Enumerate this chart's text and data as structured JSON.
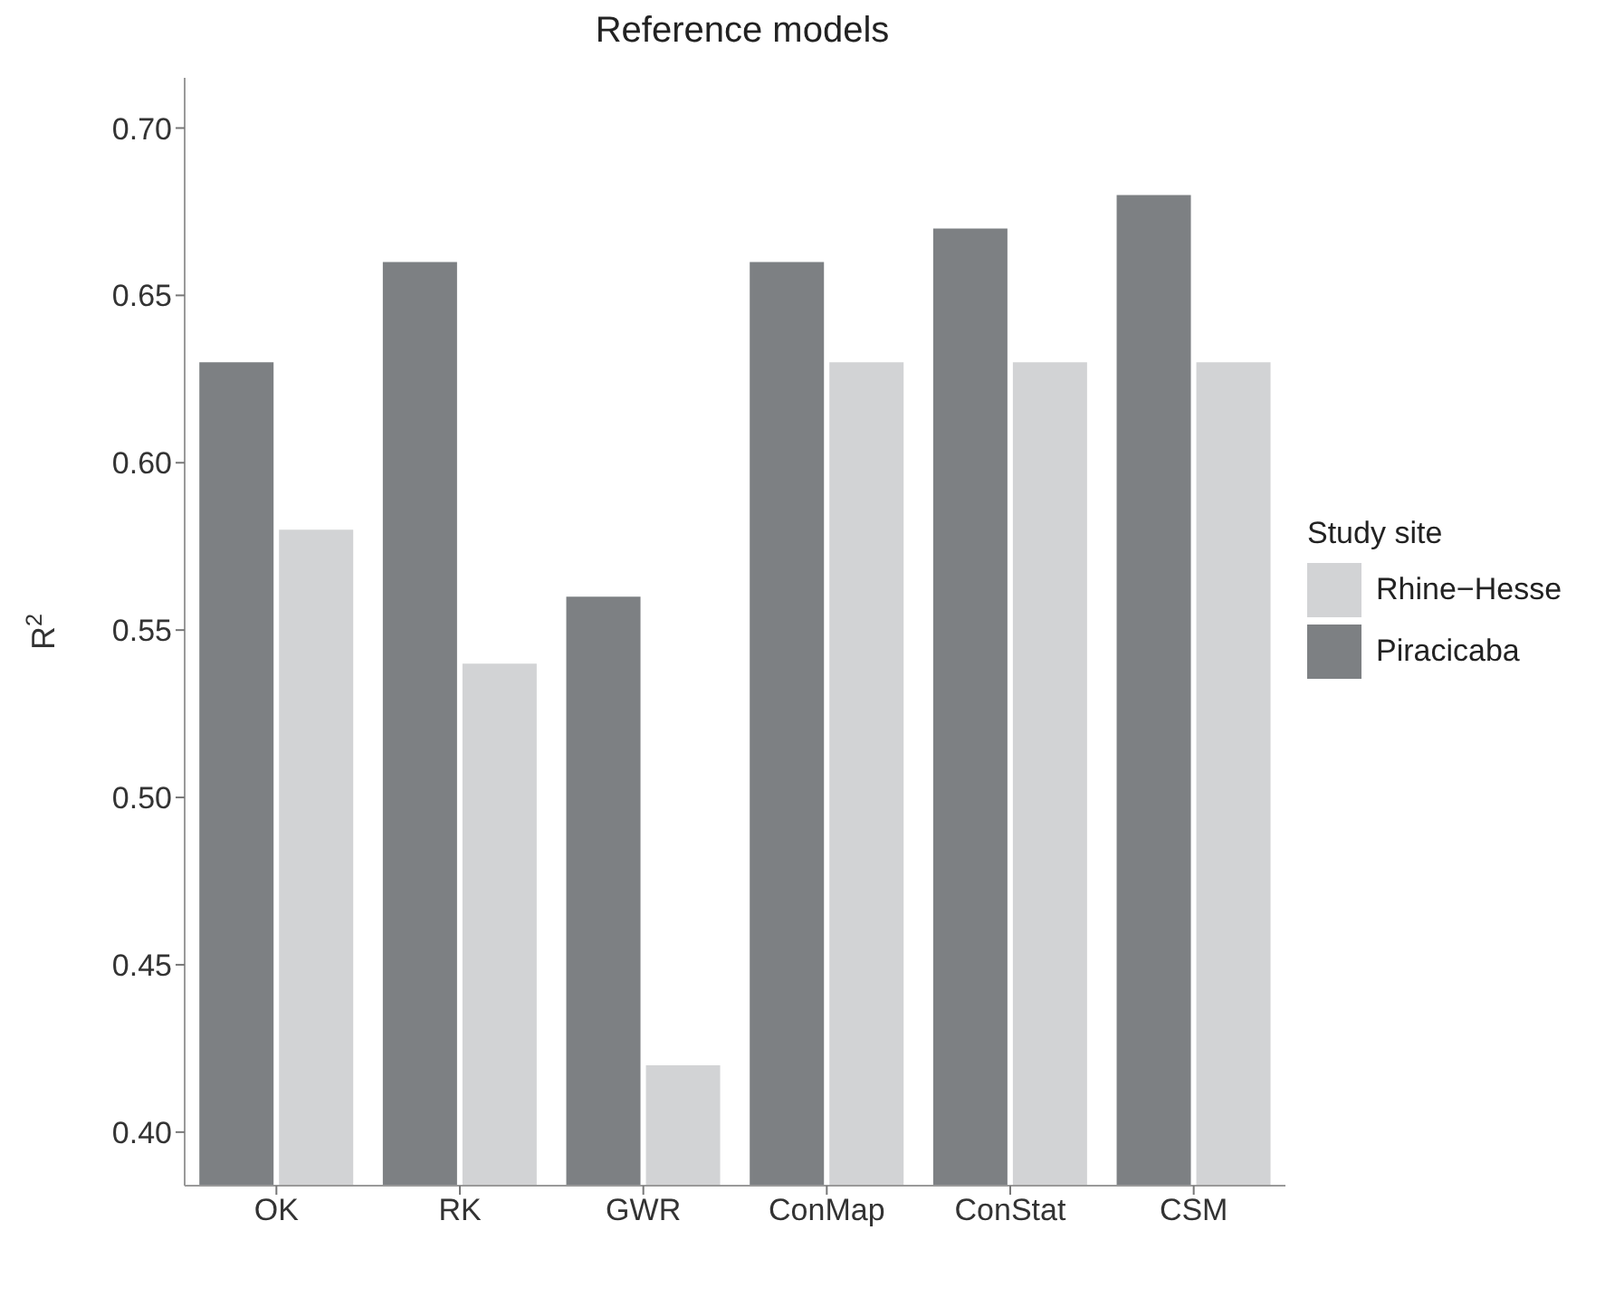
{
  "chart_data": {
    "type": "bar",
    "title": "Reference models",
    "ylabel": "R$^{2}$",
    "legend_title": "Study site",
    "legend": "right",
    "categories": [
      "OK",
      "RK",
      "GWR",
      "ConMap",
      "ConStat",
      "CSM"
    ],
    "series": [
      {
        "name": "Rhine−Hesse",
        "color": "#d2d3d5",
        "values": [
          0.58,
          0.54,
          0.42,
          0.63,
          0.63,
          0.63
        ]
      },
      {
        "name": "Piracicaba",
        "color": "#7d8083",
        "values": [
          0.63,
          0.66,
          0.56,
          0.66,
          0.67,
          0.68
        ]
      }
    ],
    "ylim": [
      0.384,
      0.715
    ],
    "yticks": [
      {
        "value": 0.4,
        "label": "0.40"
      },
      0.45,
      {
        "value": 0.5,
        "label": "0.50"
      },
      0.55,
      {
        "value": 0.6,
        "label": "0.60"
      },
      0.65,
      {
        "value": 0.7,
        "label": "0.70"
      }
    ],
    "grid": false
  }
}
